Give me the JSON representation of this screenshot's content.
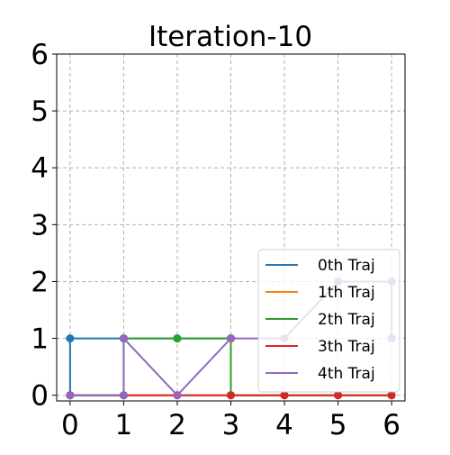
{
  "chart_data": {
    "type": "line",
    "title": "Iteration-10",
    "xlabel": "",
    "ylabel": "",
    "xlim": [
      -0.25,
      6.25
    ],
    "ylim": [
      -0.1,
      6
    ],
    "xticks": [
      0,
      1,
      2,
      3,
      4,
      5,
      6
    ],
    "yticks": [
      0,
      1,
      2,
      3,
      4,
      5,
      6
    ],
    "grid": true,
    "legend_position": "lower-right",
    "series": [
      {
        "name": "0th Traj",
        "color": "#1f77b4",
        "points": [
          [
            0,
            0
          ],
          [
            0,
            1
          ],
          [
            1,
            1
          ],
          [
            2,
            1
          ],
          [
            3,
            1
          ]
        ]
      },
      {
        "name": "1th Traj",
        "color": "#ff7f0e",
        "points": [
          [
            0,
            0
          ],
          [
            1,
            0
          ],
          [
            2,
            0
          ],
          [
            3,
            0
          ],
          [
            4,
            0
          ],
          [
            5,
            0
          ],
          [
            6,
            0
          ]
        ]
      },
      {
        "name": "2th Traj",
        "color": "#2ca02c",
        "points": [
          [
            0,
            0
          ],
          [
            1,
            0
          ],
          [
            1,
            1
          ],
          [
            2,
            1
          ],
          [
            3,
            1
          ],
          [
            3,
            0
          ],
          [
            4,
            0
          ],
          [
            5,
            0
          ],
          [
            6,
            0
          ]
        ]
      },
      {
        "name": "3th Traj",
        "color": "#d62728",
        "points": [
          [
            0,
            0
          ],
          [
            1,
            0
          ],
          [
            2,
            0
          ],
          [
            3,
            0
          ],
          [
            4,
            0
          ],
          [
            5,
            0
          ],
          [
            6,
            0
          ]
        ]
      },
      {
        "name": "4th Traj",
        "color": "#9467bd",
        "points": [
          [
            0,
            0
          ],
          [
            1,
            0
          ],
          [
            1,
            1
          ],
          [
            2,
            0
          ],
          [
            3,
            1
          ],
          [
            4,
            1
          ],
          [
            5,
            2
          ],
          [
            6,
            2
          ],
          [
            6,
            1
          ]
        ]
      }
    ]
  }
}
